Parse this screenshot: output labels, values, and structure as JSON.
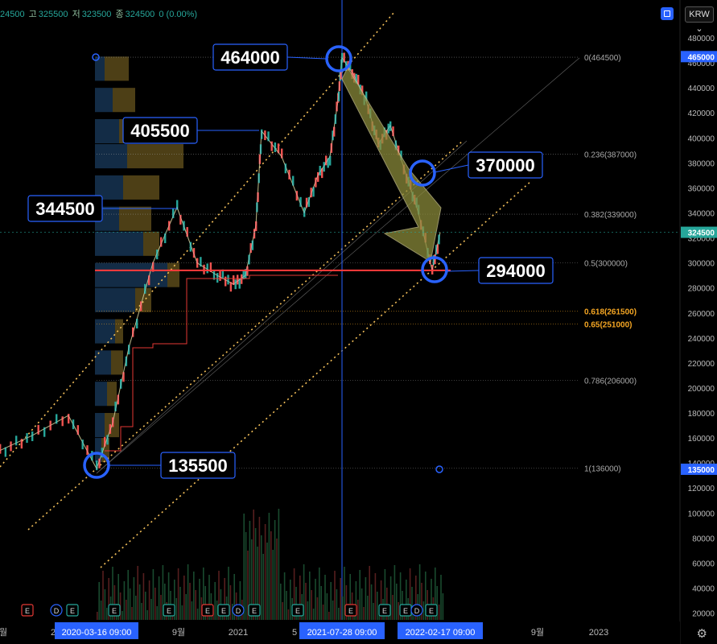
{
  "header": {
    "open_fragment": "24500",
    "high_label": "고",
    "high": "325500",
    "low_label": "저",
    "low": "323500",
    "close_label": "종",
    "close": "324500",
    "change": "0 (0.00%)",
    "currency": "KRW"
  },
  "price_axis": {
    "ticks": [
      "480000",
      "460000",
      "440000",
      "420000",
      "400000",
      "380000",
      "360000",
      "340000",
      "320000",
      "300000",
      "280000",
      "260000",
      "240000",
      "220000",
      "200000",
      "180000",
      "160000",
      "140000",
      "120000",
      "100000",
      "80000",
      "60000",
      "40000",
      "20000"
    ],
    "badges": [
      {
        "label": "465000",
        "value": 465000,
        "color": "#2962ff"
      },
      {
        "label": "324500",
        "value": 324500,
        "color": "#26a69a"
      },
      {
        "label": "135000",
        "value": 135000,
        "color": "#2962ff"
      }
    ]
  },
  "time_axis": {
    "labels": [
      "월",
      "2",
      "9월",
      "2021",
      "5",
      "9월",
      "2023"
    ],
    "highlights": [
      "2020-03-16   09:00",
      "2021-07-28   09:00",
      "2022-02-17   09:00"
    ]
  },
  "fib_levels": [
    {
      "ratio": "0",
      "label": "0(464500)",
      "value": 464500,
      "color": "#999"
    },
    {
      "ratio": "0.236",
      "label": "0.236(387000)",
      "value": 387000,
      "color": "#999"
    },
    {
      "ratio": "0.382",
      "label": "0.382(339000)",
      "value": 339000,
      "color": "#999"
    },
    {
      "ratio": "0.5",
      "label": "0.5(300000)",
      "value": 300000,
      "color": "#999"
    },
    {
      "ratio": "0.618",
      "label": "0.618(261500)",
      "value": 261500,
      "color": "#f5a623"
    },
    {
      "ratio": "0.65",
      "label": "0.65(251000)",
      "value": 251000,
      "color": "#f5a623"
    },
    {
      "ratio": "0.786",
      "label": "0.786(206000)",
      "value": 206000,
      "color": "#999"
    },
    {
      "ratio": "1",
      "label": "1(136000)",
      "value": 136000,
      "color": "#999"
    }
  ],
  "callouts": [
    {
      "label": "464000",
      "value": 464000
    },
    {
      "label": "405500",
      "value": 405500
    },
    {
      "label": "344500",
      "value": 344500
    },
    {
      "label": "370000",
      "value": 370000
    },
    {
      "label": "294000",
      "value": 294000
    },
    {
      "label": "135500",
      "value": 135500
    }
  ],
  "event_markers": [
    "E",
    "D",
    "E",
    "E",
    "E",
    "E",
    "E",
    "D",
    "E",
    "E",
    "E",
    "E",
    "E",
    "D",
    "E"
  ],
  "chart_data": {
    "type": "line",
    "title": "",
    "series": [
      {
        "values": [
          {
            "x": "2019-12",
            "y": 150000
          },
          {
            "x": "2020-01",
            "y": 162000
          },
          {
            "x": "2020-02",
            "y": 178000
          },
          {
            "x": "2020-03-16",
            "y": 135500
          },
          {
            "x": "2020-04",
            "y": 172000
          },
          {
            "x": "2020-05",
            "y": 232000
          },
          {
            "x": "2020-06",
            "y": 300000
          },
          {
            "x": "2020-07",
            "y": 344500
          },
          {
            "x": "2020-08",
            "y": 300000
          },
          {
            "x": "2020-09",
            "y": 290000
          },
          {
            "x": "2020-10",
            "y": 283000
          },
          {
            "x": "2020-11",
            "y": 290000
          },
          {
            "x": "2020-12",
            "y": 330000
          },
          {
            "x": "2021-01",
            "y": 405500
          },
          {
            "x": "2021-02",
            "y": 385000
          },
          {
            "x": "2021-03",
            "y": 340000
          },
          {
            "x": "2021-04",
            "y": 370000
          },
          {
            "x": "2021-05",
            "y": 385000
          },
          {
            "x": "2021-06",
            "y": 430000
          },
          {
            "x": "2021-07-28",
            "y": 464000
          },
          {
            "x": "2021-08",
            "y": 450000
          },
          {
            "x": "2021-09",
            "y": 430000
          },
          {
            "x": "2021-10",
            "y": 395000
          },
          {
            "x": "2021-11",
            "y": 410000
          },
          {
            "x": "2021-12",
            "y": 370000
          },
          {
            "x": "2022-01",
            "y": 340000
          },
          {
            "x": "2022-02-17",
            "y": 294000
          },
          {
            "x": "2022-03",
            "y": 324500
          }
        ]
      }
    ],
    "ylim": [
      20000,
      485000
    ],
    "current_price": 324500,
    "support_line": 294000,
    "scale": "linear",
    "grid": false,
    "volume_profile": true,
    "overlays": [
      "fibonacci retracement 464500-136000",
      "ascending parallel channel",
      "downward arrow 464000→294000"
    ]
  },
  "colors": {
    "up": "#26a69a",
    "down": "#ef5350",
    "accent": "#2962ff",
    "channel": "#f5c15a",
    "support": "#ff3b3b",
    "arrow": "#8a8a3a"
  }
}
